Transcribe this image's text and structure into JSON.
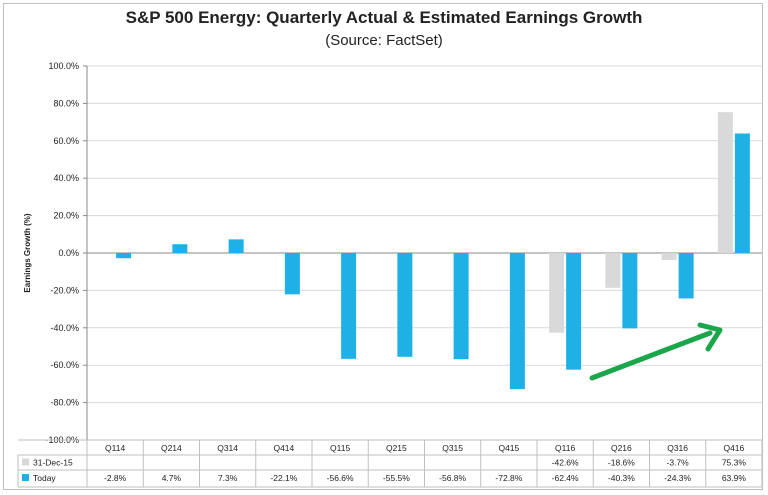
{
  "chart_data": {
    "type": "bar",
    "title": "S&P 500 Energy: Quarterly Actual & Estimated Earnings Growth",
    "subtitle": "(Source: FactSet)",
    "ylabel": "Earnings Growth (%)",
    "ylim": [
      -100,
      100
    ],
    "yticks": [
      "100.0%",
      "80.0%",
      "60.0%",
      "40.0%",
      "20.0%",
      "0.0%",
      "-20.0%",
      "-40.0%",
      "-60.0%",
      "-80.0%",
      "-100.0%"
    ],
    "categories": [
      "Q114",
      "Q214",
      "Q314",
      "Q414",
      "Q115",
      "Q215",
      "Q315",
      "Q415",
      "Q116",
      "Q216",
      "Q316",
      "Q416"
    ],
    "series": [
      {
        "name": "31-Dec-15",
        "color": "#d9d9d9",
        "values": [
          null,
          null,
          null,
          null,
          null,
          null,
          null,
          null,
          -42.6,
          -18.6,
          -3.7,
          75.3
        ],
        "labels": [
          "",
          "",
          "",
          "",
          "",
          "",
          "",
          "",
          "-42.6%",
          "-18.6%",
          "-3.7%",
          "75.3%"
        ]
      },
      {
        "name": "Today",
        "color": "#1fb1e6",
        "values": [
          -2.8,
          4.7,
          7.3,
          -22.1,
          -56.6,
          -55.5,
          -56.8,
          -72.8,
          -62.4,
          -40.3,
          -24.3,
          63.9
        ],
        "labels": [
          "-2.8%",
          "4.7%",
          "7.3%",
          "-22.1%",
          "-56.6%",
          "-55.5%",
          "-56.8%",
          "-72.8%",
          "-62.4%",
          "-40.3%",
          "-24.3%",
          "63.9%"
        ]
      }
    ],
    "annotation": "green upward arrow",
    "arrow_color": "#1aa64a"
  }
}
